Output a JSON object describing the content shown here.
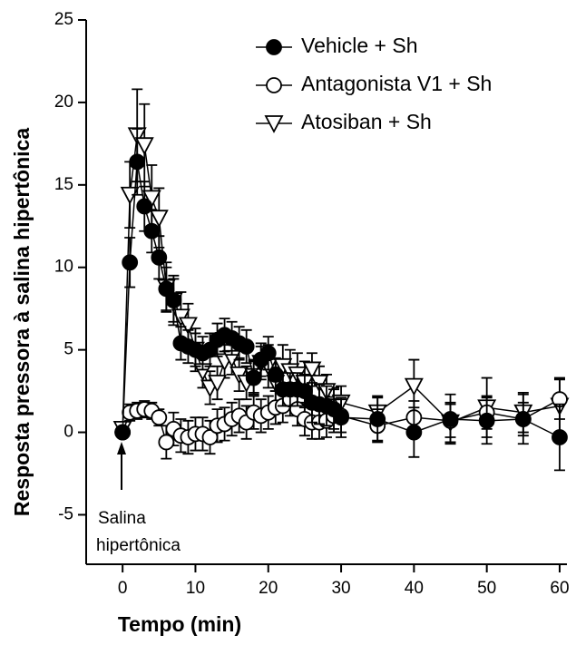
{
  "chart_data": {
    "type": "line",
    "xlabel": "Tempo (min)",
    "ylabel": "Resposta pressora à salina hipertônica",
    "annotation": [
      "Salina",
      "hipertônica"
    ],
    "x": [
      0,
      1,
      2,
      3,
      4,
      5,
      6,
      7,
      8,
      9,
      10,
      11,
      12,
      13,
      14,
      15,
      16,
      17,
      18,
      19,
      20,
      21,
      22,
      23,
      24,
      25,
      26,
      27,
      28,
      29,
      30,
      35,
      40,
      45,
      50,
      55,
      60
    ],
    "series": [
      {
        "name": "Vehicle + Sh",
        "color": "#000000",
        "marker": "filled-circle",
        "values": [
          0,
          10.3,
          16.4,
          13.7,
          12.2,
          10.6,
          8.7,
          8.0,
          5.4,
          5.2,
          5.0,
          4.8,
          5.0,
          5.6,
          5.9,
          5.7,
          5.4,
          5.2,
          3.3,
          4.4,
          4.8,
          3.5,
          2.6,
          2.6,
          2.6,
          2.5,
          1.8,
          1.7,
          1.6,
          1.4,
          0.9,
          0.8,
          0,
          0.8,
          0.7,
          0.8,
          -0.3
        ],
        "errors": [
          0.3,
          1.5,
          2.0,
          1.5,
          1.3,
          1.3,
          1.3,
          1.3,
          1.0,
          1.0,
          1.0,
          1.0,
          1.0,
          1.0,
          1.0,
          1.0,
          1.0,
          1.0,
          1.0,
          1.0,
          1.0,
          1.0,
          1.0,
          1.0,
          1.0,
          1.0,
          1.2,
          1.2,
          1.2,
          1.2,
          1.2,
          1.3,
          1.5,
          1.5,
          1.4,
          1.5,
          2.0
        ]
      },
      {
        "name": "Antagonista V1 + Sh",
        "color": "#000000",
        "marker": "open-circle",
        "values": [
          0,
          1.2,
          1.3,
          1.4,
          1.3,
          0.9,
          -0.6,
          0.2,
          -0.2,
          -0.3,
          -0.1,
          -0.1,
          -0.3,
          0.4,
          0.5,
          0.8,
          1.0,
          0.6,
          1.2,
          1.0,
          1.2,
          1.5,
          1.6,
          2.0,
          1.4,
          0.8,
          0.6,
          0.6,
          0.7,
          1.0,
          1.0,
          0.4,
          0.9,
          0.7,
          1.2,
          0.8,
          2.0
        ],
        "errors": [
          0.3,
          0.5,
          0.5,
          0.5,
          0.5,
          0.5,
          1.0,
          1.0,
          1.0,
          1.0,
          1.0,
          1.0,
          1.0,
          1.0,
          1.0,
          1.0,
          1.0,
          1.0,
          1.0,
          1.0,
          1.0,
          1.0,
          1.0,
          1.0,
          1.0,
          1.0,
          1.0,
          1.0,
          1.0,
          1.0,
          1.0,
          1.0,
          1.0,
          1.0,
          1.0,
          1.0,
          1.2
        ]
      },
      {
        "name": "Atosiban + Sh",
        "color": "#000000",
        "marker": "open-triangle-down",
        "values": [
          0.2,
          14.4,
          18.0,
          17.4,
          14.2,
          13.0,
          8.8,
          8.0,
          7.0,
          6.5,
          5.0,
          3.7,
          2.7,
          3.0,
          4.3,
          4.5,
          3.5,
          3.0,
          3.4,
          4.2,
          4.0,
          3.0,
          4.0,
          3.7,
          3.5,
          3.0,
          3.8,
          3.0,
          2.5,
          1.7,
          1.8,
          1.2,
          2.8,
          0.6,
          1.5,
          1.2,
          1.6
        ],
        "errors": [
          0.3,
          2.0,
          2.8,
          2.5,
          2.0,
          1.8,
          1.5,
          1.5,
          1.5,
          1.3,
          1.3,
          1.0,
          1.0,
          1.0,
          1.0,
          1.0,
          1.0,
          1.0,
          1.0,
          1.0,
          1.3,
          1.3,
          1.3,
          1.3,
          1.3,
          1.3,
          1.0,
          1.0,
          1.0,
          1.0,
          1.0,
          1.0,
          1.6,
          1.2,
          1.8,
          1.2,
          1.7
        ]
      }
    ],
    "xlim": [
      -5,
      61
    ],
    "xticks": [
      0,
      10,
      20,
      30,
      40,
      50,
      60
    ],
    "ylim": [
      -8,
      25
    ],
    "yticks": [
      -5,
      0,
      5,
      10,
      15,
      20,
      25
    ],
    "legend": "top-right"
  }
}
